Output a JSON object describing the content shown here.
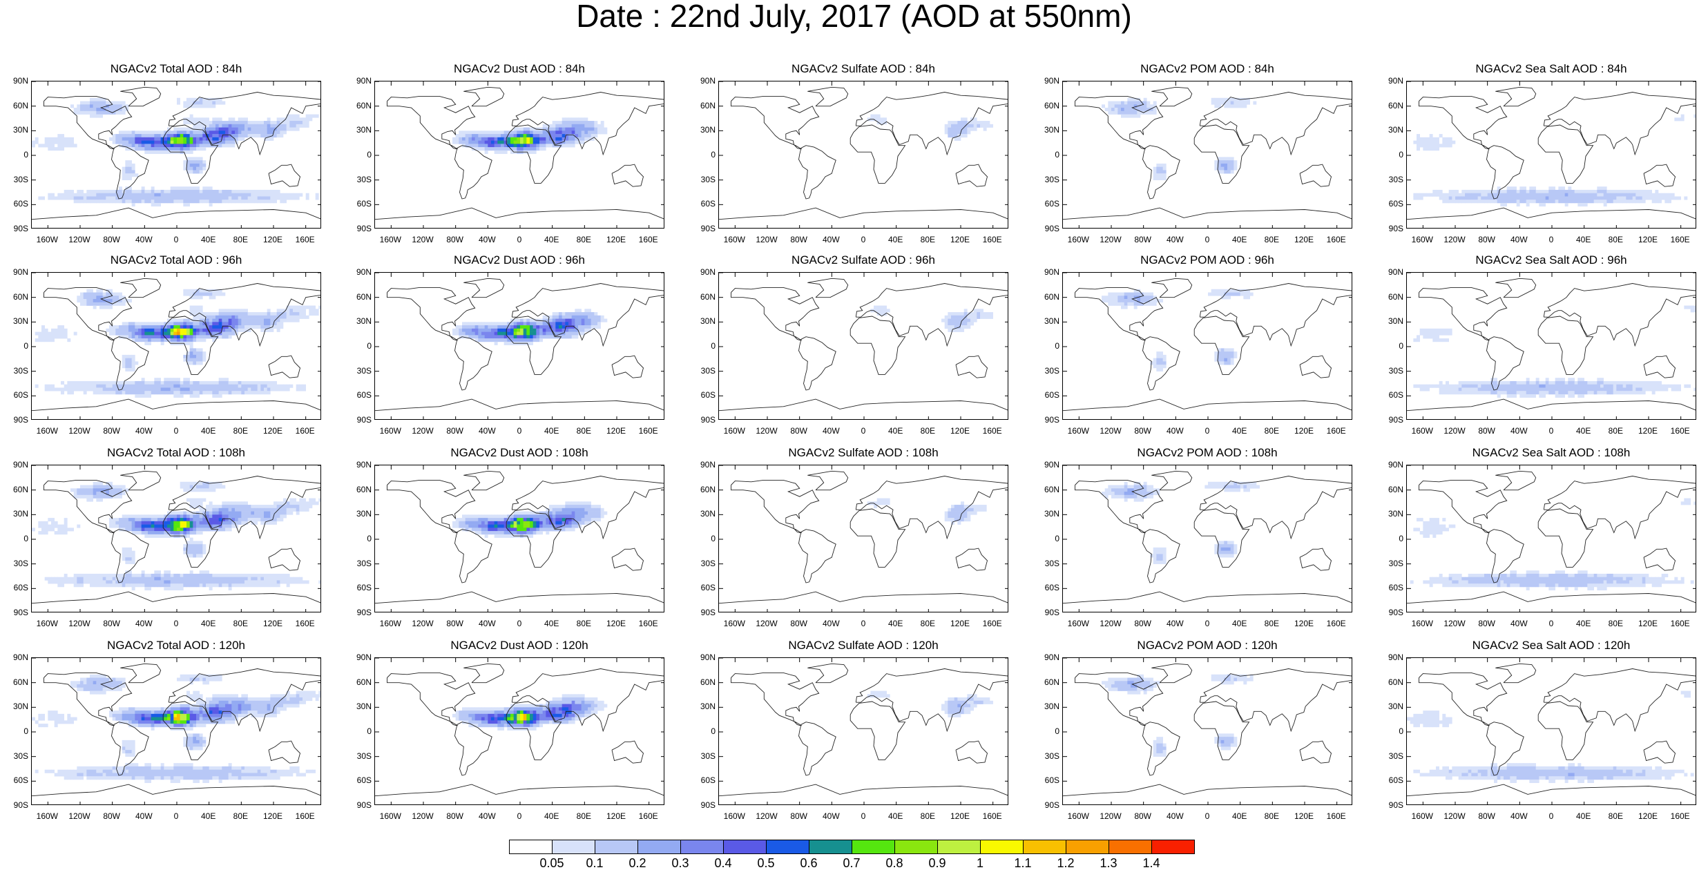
{
  "title": "Date : 22nd July, 2017 (AOD at 550nm)",
  "lat_ticks": [
    "90N",
    "60N",
    "30N",
    "0",
    "30S",
    "60S",
    "90S"
  ],
  "lon_ticks": [
    "160W",
    "120W",
    "80W",
    "40W",
    "0",
    "40E",
    "80E",
    "120E",
    "160E"
  ],
  "panels": [
    {
      "title": "NGACv2 Total AOD : 84h",
      "species": "total"
    },
    {
      "title": "NGACv2 Dust AOD : 84h",
      "species": "dust"
    },
    {
      "title": "NGACv2 Sulfate AOD : 84h",
      "species": "sulfate"
    },
    {
      "title": "NGACv2 POM AOD : 84h",
      "species": "pom"
    },
    {
      "title": "NGACv2 Sea Salt AOD : 84h",
      "species": "seasalt"
    },
    {
      "title": "NGACv2 Total AOD : 96h",
      "species": "total"
    },
    {
      "title": "NGACv2 Dust AOD : 96h",
      "species": "dust"
    },
    {
      "title": "NGACv2 Sulfate AOD : 96h",
      "species": "sulfate"
    },
    {
      "title": "NGACv2 POM AOD : 96h",
      "species": "pom"
    },
    {
      "title": "NGACv2 Sea Salt AOD : 96h",
      "species": "seasalt"
    },
    {
      "title": "NGACv2 Total AOD : 108h",
      "species": "total"
    },
    {
      "title": "NGACv2 Dust AOD : 108h",
      "species": "dust"
    },
    {
      "title": "NGACv2 Sulfate AOD : 108h",
      "species": "sulfate"
    },
    {
      "title": "NGACv2 POM AOD : 108h",
      "species": "pom"
    },
    {
      "title": "NGACv2 Sea Salt AOD : 108h",
      "species": "seasalt"
    },
    {
      "title": "NGACv2 Total AOD : 120h",
      "species": "total"
    },
    {
      "title": "NGACv2 Dust AOD : 120h",
      "species": "dust"
    },
    {
      "title": "NGACv2 Sulfate AOD : 120h",
      "species": "sulfate"
    },
    {
      "title": "NGACv2 POM AOD : 120h",
      "species": "pom"
    },
    {
      "title": "NGACv2 Sea Salt  AOD : 120h",
      "species": "seasalt"
    }
  ],
  "colorbar": {
    "labels": [
      "0.05",
      "0.1",
      "0.2",
      "0.3",
      "0.4",
      "0.5",
      "0.6",
      "0.7",
      "0.8",
      "0.9",
      "1",
      "1.1",
      "1.2",
      "1.3",
      "1.4"
    ],
    "colors": [
      "#ffffff",
      "#d8e2fa",
      "#b8c8f6",
      "#93aaf2",
      "#7a86ee",
      "#5a5ae6",
      "#1a5ae6",
      "#169090",
      "#55e60f",
      "#8ae60f",
      "#bef040",
      "#f8f800",
      "#f8c000",
      "#f8a000",
      "#f87000",
      "#f82000"
    ]
  }
}
